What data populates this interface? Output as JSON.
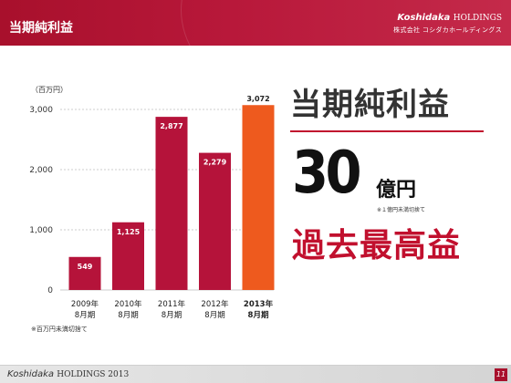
{
  "header": {
    "title": "当期純利益",
    "brand_name": "Koshidaka",
    "brand_suffix": "HOLDINGS",
    "brand_company": "株式会社 コシダカホールディングス"
  },
  "chart_data": {
    "type": "bar",
    "unit_label": "（百万円）",
    "categories": [
      {
        "year": "2009年",
        "period": "8月期"
      },
      {
        "year": "2010年",
        "period": "8月期"
      },
      {
        "year": "2011年",
        "period": "8月期"
      },
      {
        "year": "2012年",
        "period": "8月期"
      },
      {
        "year": "2013年",
        "period": "8月期"
      }
    ],
    "values": [
      549,
      1125,
      2877,
      2279,
      3072
    ],
    "value_labels": [
      "549",
      "1,125",
      "2,877",
      "2,279",
      "3,072"
    ],
    "highlight_index": 4,
    "ylim": [
      0,
      3000
    ],
    "yticks": [
      {
        "value": 0,
        "label": "0"
      },
      {
        "value": 1000,
        "label": "1,000"
      },
      {
        "value": 2000,
        "label": "2,000"
      },
      {
        "value": 3000,
        "label": "3,000"
      }
    ],
    "colors": {
      "bar": "#b5133a",
      "highlight": "#ee5a1e",
      "grid": "#bdbdbd"
    }
  },
  "summary": {
    "heading": "当期純利益",
    "amount": "30",
    "amount_unit": "億円",
    "amount_note": "※１億円未満切捨て",
    "record": "過去最高益"
  },
  "footnote": "※百万円未満切捨て",
  "footer": {
    "brand_name": "Koshidaka",
    "brand_suffix": "HOLDINGS 2013",
    "page_number": "11"
  }
}
